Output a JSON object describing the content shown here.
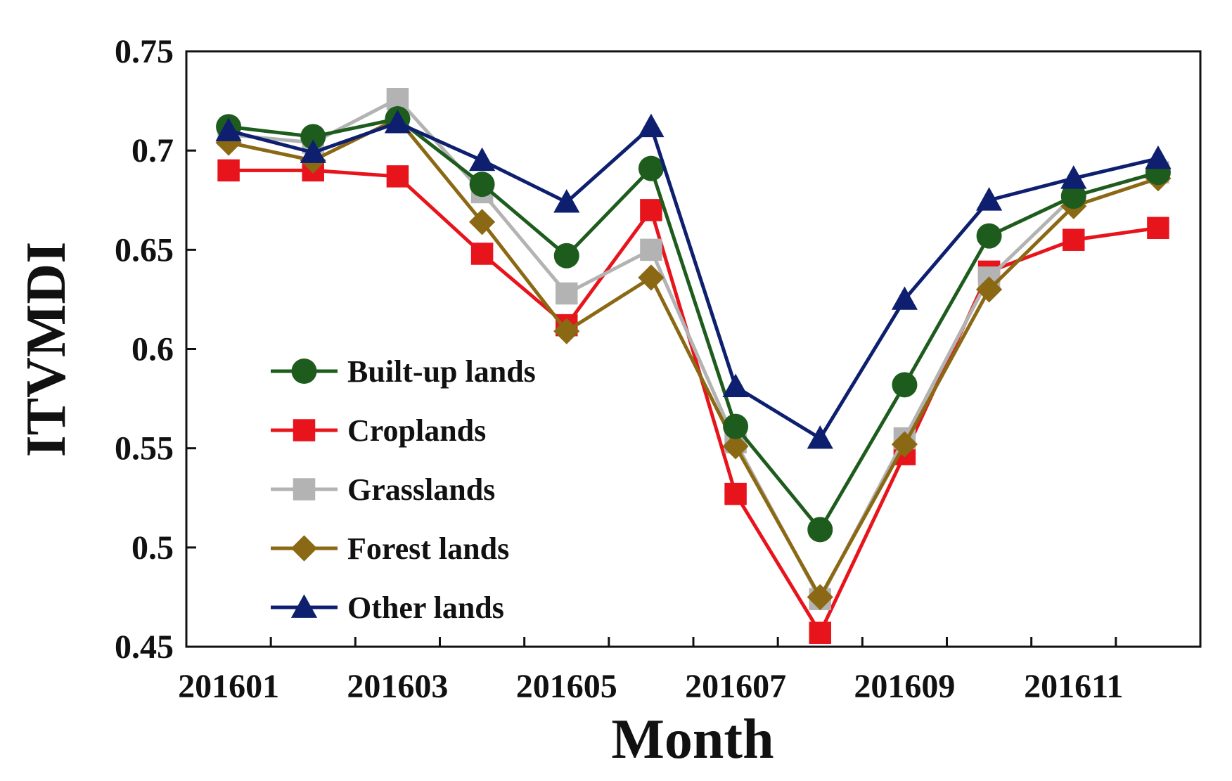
{
  "chart_data": {
    "type": "line",
    "title": "",
    "xlabel": "Month",
    "ylabel": "ITVMDI",
    "ylim": [
      0.45,
      0.75
    ],
    "yticks": [
      0.45,
      0.5,
      0.55,
      0.6,
      0.65,
      0.7,
      0.75
    ],
    "ytick_labels": [
      "0.45",
      "0.5",
      "0.55",
      "0.6",
      "0.65",
      "0.7",
      "0.75"
    ],
    "categories": [
      "201601",
      "201602",
      "201603",
      "201604",
      "201605",
      "201606",
      "201607",
      "201608",
      "201609",
      "201610",
      "201611",
      "201612"
    ],
    "xtick_labels": [
      "201601",
      "201603",
      "201605",
      "201607",
      "201609",
      "201611"
    ],
    "legend_position": "left-center",
    "grid": false,
    "series": [
      {
        "name": "Built-up lands",
        "color": "#1e5c1e",
        "marker": "circle",
        "values": [
          0.712,
          0.707,
          0.716,
          0.683,
          0.647,
          0.691,
          0.561,
          0.509,
          0.582,
          0.657,
          0.677,
          0.689
        ]
      },
      {
        "name": "Croplands",
        "color": "#e8141c",
        "marker": "square",
        "values": [
          0.69,
          0.69,
          0.687,
          0.648,
          0.612,
          0.67,
          0.527,
          0.457,
          0.547,
          0.639,
          0.655,
          0.661
        ]
      },
      {
        "name": "Grasslands",
        "color": "#b3b3b3",
        "marker": "square",
        "values": [
          0.708,
          0.704,
          0.726,
          0.679,
          0.628,
          0.65,
          0.553,
          0.474,
          0.555,
          0.636,
          0.677,
          0.689
        ]
      },
      {
        "name": "Forest lands",
        "color": "#8b6914",
        "marker": "diamond",
        "values": [
          0.704,
          0.695,
          0.716,
          0.664,
          0.609,
          0.636,
          0.551,
          0.475,
          0.552,
          0.63,
          0.672,
          0.686
        ]
      },
      {
        "name": "Other lands",
        "color": "#0d1f6e",
        "marker": "triangle",
        "values": [
          0.71,
          0.699,
          0.714,
          0.695,
          0.674,
          0.712,
          0.581,
          0.555,
          0.625,
          0.675,
          0.686,
          0.696
        ]
      }
    ]
  }
}
